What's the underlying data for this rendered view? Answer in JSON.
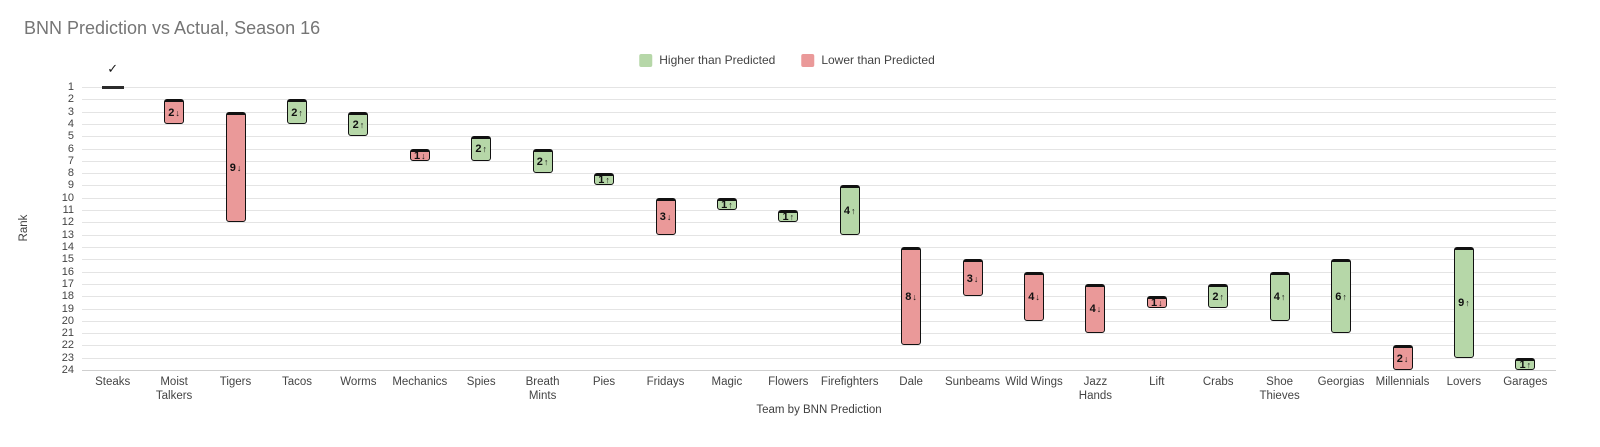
{
  "chart_data": {
    "type": "bar",
    "variant": "floating-range-bar",
    "title": "BNN Prediction vs Actual, Season 16",
    "xlabel": "Team by BNN Prediction",
    "ylabel": "Rank",
    "ylim": [
      1,
      24
    ],
    "y_axis_inverted": true,
    "grid": true,
    "y_ticks": [
      1,
      2,
      3,
      4,
      5,
      6,
      7,
      8,
      9,
      10,
      11,
      12,
      13,
      14,
      15,
      16,
      17,
      18,
      19,
      20,
      21,
      22,
      23,
      24
    ],
    "legend_position": "top-center",
    "legend": [
      {
        "label": "Higher than Predicted",
        "color": "#b6d7a8"
      },
      {
        "label": "Lower than Predicted",
        "color": "#ea9999"
      }
    ],
    "colors": {
      "higher": "#b6d7a8",
      "lower": "#ea9999",
      "bar_border": "#111111",
      "exact_marker": "#2b2b2b"
    },
    "check_icon": "✓",
    "arrow_up": "↑",
    "arrow_down": "↓",
    "teams": [
      {
        "name": "Steaks",
        "lines": "Steaks",
        "predicted": 1,
        "actual": 1,
        "diff": 0,
        "direction": "exact"
      },
      {
        "name": "Moist Talkers",
        "lines": "Moist\nTalkers",
        "predicted": 2,
        "actual": 4,
        "diff": 2,
        "direction": "down"
      },
      {
        "name": "Tigers",
        "lines": "Tigers",
        "predicted": 3,
        "actual": 12,
        "diff": 9,
        "direction": "down"
      },
      {
        "name": "Tacos",
        "lines": "Tacos",
        "predicted": 4,
        "actual": 2,
        "diff": 2,
        "direction": "up"
      },
      {
        "name": "Worms",
        "lines": "Worms",
        "predicted": 5,
        "actual": 3,
        "diff": 2,
        "direction": "up"
      },
      {
        "name": "Mechanics",
        "lines": "Mechanics",
        "predicted": 6,
        "actual": 7,
        "diff": 1,
        "direction": "down"
      },
      {
        "name": "Spies",
        "lines": "Spies",
        "predicted": 7,
        "actual": 5,
        "diff": 2,
        "direction": "up"
      },
      {
        "name": "Breath Mints",
        "lines": "Breath\nMints",
        "predicted": 8,
        "actual": 6,
        "diff": 2,
        "direction": "up"
      },
      {
        "name": "Pies",
        "lines": "Pies",
        "predicted": 9,
        "actual": 8,
        "diff": 1,
        "direction": "up"
      },
      {
        "name": "Fridays",
        "lines": "Fridays",
        "predicted": 10,
        "actual": 13,
        "diff": 3,
        "direction": "down"
      },
      {
        "name": "Magic",
        "lines": "Magic",
        "predicted": 11,
        "actual": 10,
        "diff": 1,
        "direction": "up"
      },
      {
        "name": "Flowers",
        "lines": "Flowers",
        "predicted": 12,
        "actual": 11,
        "diff": 1,
        "direction": "up"
      },
      {
        "name": "Firefighters",
        "lines": "Firefighters",
        "predicted": 13,
        "actual": 9,
        "diff": 4,
        "direction": "up"
      },
      {
        "name": "Dale",
        "lines": "Dale",
        "predicted": 14,
        "actual": 22,
        "diff": 8,
        "direction": "down"
      },
      {
        "name": "Sunbeams",
        "lines": "Sunbeams",
        "predicted": 15,
        "actual": 18,
        "diff": 3,
        "direction": "down"
      },
      {
        "name": "Wild Wings",
        "lines": "Wild Wings",
        "predicted": 16,
        "actual": 20,
        "diff": 4,
        "direction": "down"
      },
      {
        "name": "Jazz Hands",
        "lines": "Jazz\nHands",
        "predicted": 17,
        "actual": 21,
        "diff": 4,
        "direction": "down"
      },
      {
        "name": "Lift",
        "lines": "Lift",
        "predicted": 18,
        "actual": 19,
        "diff": 1,
        "direction": "down"
      },
      {
        "name": "Crabs",
        "lines": "Crabs",
        "predicted": 19,
        "actual": 17,
        "diff": 2,
        "direction": "up"
      },
      {
        "name": "Shoe Thieves",
        "lines": "Shoe\nThieves",
        "predicted": 20,
        "actual": 16,
        "diff": 4,
        "direction": "up"
      },
      {
        "name": "Georgias",
        "lines": "Georgias",
        "predicted": 21,
        "actual": 15,
        "diff": 6,
        "direction": "up"
      },
      {
        "name": "Millennials",
        "lines": "Millennials",
        "predicted": 22,
        "actual": 24,
        "diff": 2,
        "direction": "down"
      },
      {
        "name": "Lovers",
        "lines": "Lovers",
        "predicted": 23,
        "actual": 14,
        "diff": 9,
        "direction": "up"
      },
      {
        "name": "Garages",
        "lines": "Garages",
        "predicted": 24,
        "actual": 23,
        "diff": 1,
        "direction": "up"
      }
    ]
  }
}
